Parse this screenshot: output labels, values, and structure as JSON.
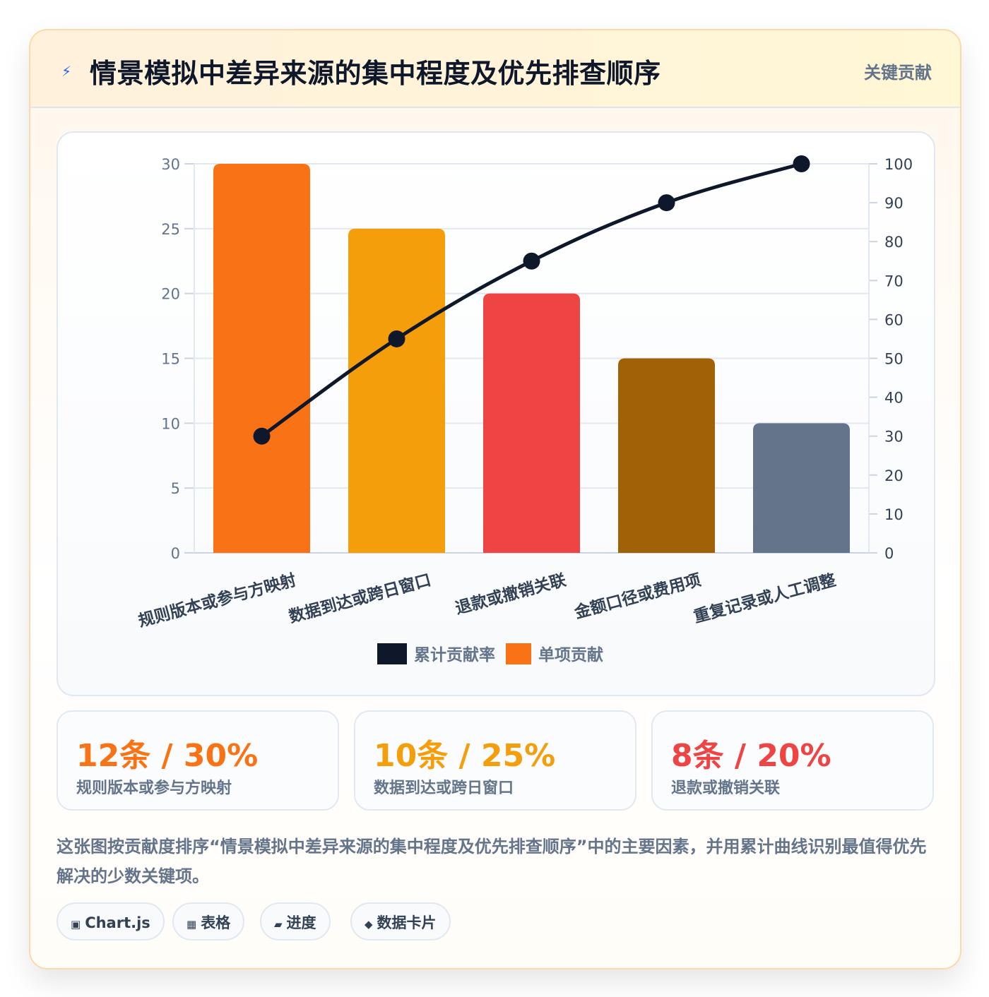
{
  "header": {
    "icon": "lightning-icon",
    "title": "情景模拟中差异来源的集中程度及优先排查顺序",
    "badge": "关键贡献"
  },
  "chart_data": {
    "type": "bar",
    "categories": [
      "规则版本或参与方映射",
      "数据到达或跨日窗口",
      "退款或撤销关联",
      "金额口径或费用项",
      "重复记录或人工调整"
    ],
    "series": [
      {
        "name": "单项贡献",
        "type": "bar",
        "axis": "left",
        "values": [
          30,
          25,
          20,
          15,
          10
        ]
      },
      {
        "name": "累计贡献率",
        "type": "line",
        "axis": "right",
        "values": [
          30,
          55,
          75,
          90,
          100
        ]
      }
    ],
    "bar_colors": [
      "#f97316",
      "#f59e0b",
      "#ef4444",
      "#a16207",
      "#64748b"
    ],
    "line_color": "#0f172a",
    "ylim_left": [
      0,
      30
    ],
    "ylim_right": [
      0,
      100
    ],
    "yticks_left": [
      0,
      5,
      10,
      15,
      20,
      25,
      30
    ],
    "yticks_right": [
      0,
      10,
      20,
      30,
      40,
      50,
      60,
      70,
      80,
      90,
      100
    ],
    "grid": true,
    "legend_position": "bottom",
    "legend": [
      {
        "label": "累计贡献率",
        "color": "#0f172a"
      },
      {
        "label": "单项贡献",
        "color": "#f97316"
      }
    ]
  },
  "stats": [
    {
      "value": "12条 / 30%",
      "label": "规则版本或参与方映射",
      "color": "#f97316"
    },
    {
      "value": "10条 / 25%",
      "label": "数据到达或跨日窗口",
      "color": "#f59e0b"
    },
    {
      "value": "8条 / 20%",
      "label": "退款或撤销关联",
      "color": "#ef4444"
    }
  ],
  "description": "这张图按贡献度排序“情景模拟中差异来源的集中程度及优先排查顺序”中的主要因素，并用累计曲线识别最值得优先解决的少数关键项。",
  "tags": [
    {
      "icon": "▣",
      "label": "Chart.js"
    },
    {
      "icon": "▦",
      "label": "表格"
    },
    {
      "icon": "▰",
      "label": "进度"
    },
    {
      "icon": "◆",
      "label": "数据卡片"
    }
  ]
}
